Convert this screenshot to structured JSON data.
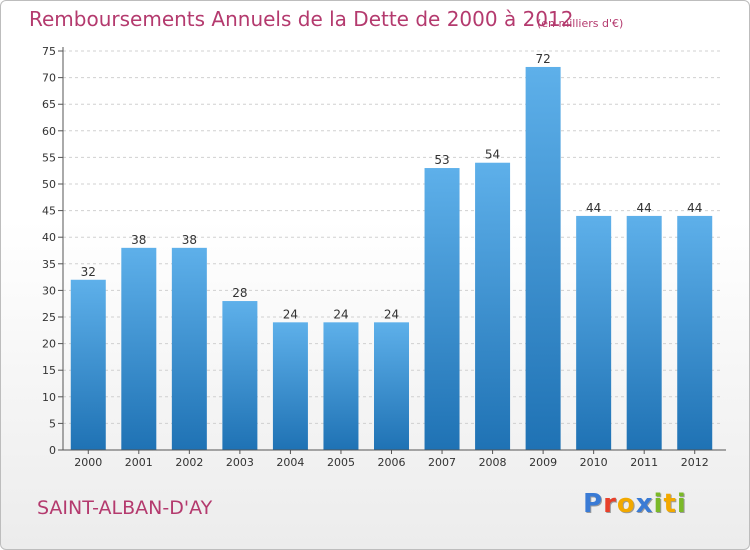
{
  "header": {
    "title": "Remboursements Annuels de la Dette de 2000 à 2012",
    "subtitle": "(en milliers d'€)"
  },
  "footer": {
    "city": "SAINT-ALBAN-D'AY",
    "logo_letters": [
      {
        "char": "P",
        "color": "#3a7bd5"
      },
      {
        "char": "r",
        "color": "#e8402a"
      },
      {
        "char": "o",
        "color": "#f2a900"
      },
      {
        "char": "x",
        "color": "#3a7bd5"
      },
      {
        "char": "i",
        "color": "#7bb928"
      },
      {
        "char": "t",
        "color": "#f2a900"
      },
      {
        "char": "i",
        "color": "#7bb928"
      }
    ]
  },
  "colors": {
    "title": "#b43a6e",
    "bar_top": "#5eb0ea",
    "bar_bottom": "#1f72b4",
    "grid": "#d0d0d0",
    "axis": "#555555"
  },
  "chart_data": {
    "type": "bar",
    "categories": [
      "2000",
      "2001",
      "2002",
      "2003",
      "2004",
      "2005",
      "2006",
      "2007",
      "2008",
      "2009",
      "2010",
      "2011",
      "2012"
    ],
    "values": [
      32,
      38,
      38,
      28,
      24,
      24,
      24,
      53,
      54,
      72,
      44,
      44,
      44
    ],
    "yticks": [
      0,
      5,
      10,
      15,
      20,
      25,
      30,
      35,
      40,
      45,
      50,
      55,
      60,
      65,
      70,
      75
    ],
    "ylim": [
      0,
      75
    ],
    "grid": "horizontal dashed",
    "legend": "none"
  }
}
